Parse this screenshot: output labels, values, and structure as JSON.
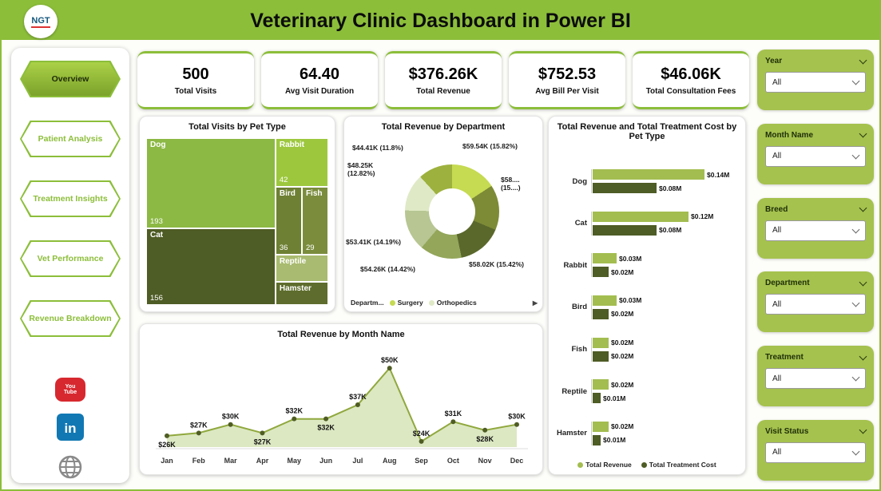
{
  "header": {
    "title": "Veterinary Clinic Dashboard in Power BI",
    "logo_text": "NGT"
  },
  "sidebar": {
    "items": [
      {
        "label": "Overview",
        "active": true
      },
      {
        "label": "Patient Analysis",
        "active": false
      },
      {
        "label": "Treatment Insights",
        "active": false
      },
      {
        "label": "Vet Performance",
        "active": false
      },
      {
        "label": "Revenue Breakdown",
        "active": false
      }
    ],
    "social": [
      {
        "name": "youtube",
        "text": "You Tube"
      },
      {
        "name": "linkedin",
        "text": "in"
      },
      {
        "name": "website",
        "text": ""
      }
    ]
  },
  "kpis": [
    {
      "value": "500",
      "label": "Total Visits"
    },
    {
      "value": "64.40",
      "label": "Avg Visit Duration"
    },
    {
      "value": "$376.26K",
      "label": "Total Revenue"
    },
    {
      "value": "$752.53",
      "label": "Avg Bill Per Visit"
    },
    {
      "value": "$46.06K",
      "label": "Total Consultation Fees"
    }
  ],
  "filters": [
    {
      "label": "Year",
      "value": "All"
    },
    {
      "label": "Month Name",
      "value": "All"
    },
    {
      "label": "Breed",
      "value": "All"
    },
    {
      "label": "Department",
      "value": "All"
    },
    {
      "label": "Treatment",
      "value": "All"
    },
    {
      "label": "Visit Status",
      "value": "All"
    }
  ],
  "chart_data": [
    {
      "type": "treemap",
      "title": "Total Visits by Pet Type",
      "items": [
        {
          "label": "Dog",
          "value": "193",
          "color": "#8cb944"
        },
        {
          "label": "Cat",
          "value": "156",
          "color": "#4e5c25"
        },
        {
          "label": "Rabbit",
          "value": "42",
          "color": "#9dc83e"
        },
        {
          "label": "Bird",
          "value": "36",
          "color": "#6e8034"
        },
        {
          "label": "Fish",
          "value": "29",
          "color": "#7b8d3d"
        },
        {
          "label": "Reptile",
          "value": "",
          "color": "#a9bb70"
        },
        {
          "label": "Hamster",
          "value": "",
          "color": "#5e6d2d"
        }
      ]
    },
    {
      "type": "pie",
      "title": "Total Revenue by Department",
      "slices": [
        {
          "label": "$59.54K (15.82%)",
          "pct": 15.82,
          "color": "#c6da52"
        },
        {
          "label": "$58.... (15....)",
          "pct": 15.52,
          "color": "#7d8b36"
        },
        {
          "label": "$58.02K (15.42%)",
          "pct": 15.42,
          "color": "#5a682c"
        },
        {
          "label": "$54.26K (14.42%)",
          "pct": 14.42,
          "color": "#93a65a"
        },
        {
          "label": "$53.41K (14.19%)",
          "pct": 14.19,
          "color": "#b7c693"
        },
        {
          "label": "$48.25K (12.82%)",
          "pct": 12.82,
          "color": "#dfe9c6"
        },
        {
          "label": "$44.41K (11.8%)",
          "pct": 11.81,
          "color": "#9db13e"
        }
      ],
      "legend_title": "Departm...",
      "legend": [
        {
          "label": "Surgery",
          "color": "#c6da52"
        },
        {
          "label": "Orthopedics",
          "color": "#dfe9c6"
        }
      ]
    },
    {
      "type": "bar",
      "title": "Total Revenue and Total Treatment Cost by Pet Type",
      "categories": [
        "Dog",
        "Cat",
        "Rabbit",
        "Bird",
        "Fish",
        "Reptile",
        "Hamster"
      ],
      "xlim": [
        0,
        0.15
      ],
      "series": [
        {
          "name": "Total Revenue",
          "color": "#a3bd50",
          "values": [
            0.14,
            0.12,
            0.03,
            0.03,
            0.02,
            0.02,
            0.02
          ],
          "labels": [
            "$0.14M",
            "$0.12M",
            "$0.03M",
            "$0.03M",
            "$0.02M",
            "$0.02M",
            "$0.02M"
          ]
        },
        {
          "name": "Total Treatment Cost",
          "color": "#4e5c25",
          "values": [
            0.08,
            0.08,
            0.02,
            0.02,
            0.02,
            0.01,
            0.01
          ],
          "labels": [
            "$0.08M",
            "$0.08M",
            "$0.02M",
            "$0.02M",
            "$0.02M",
            "$0.01M",
            "$0.01M"
          ]
        }
      ]
    },
    {
      "type": "area",
      "title": "Total Revenue by Month Name",
      "categories": [
        "Jan",
        "Feb",
        "Mar",
        "Apr",
        "May",
        "Jun",
        "Jul",
        "Aug",
        "Sep",
        "Oct",
        "Nov",
        "Dec"
      ],
      "values": [
        26,
        27,
        30,
        27,
        32,
        32,
        37,
        50,
        24,
        31,
        28,
        30
      ],
      "labels": [
        "$26K",
        "$27K",
        "$30K",
        "$27K",
        "$32K",
        "$32K",
        "$37K",
        "$50K",
        "$24K",
        "$31K",
        "$28K",
        "$30K"
      ],
      "label_sides": [
        "below",
        "above",
        "above",
        "below",
        "above",
        "below",
        "above",
        "above",
        "above",
        "above",
        "below",
        "above"
      ],
      "ylim": [
        22,
        52
      ],
      "line_color": "#90a83e",
      "area_color": "#d8e5bb",
      "dot_color": "#4f5d24"
    }
  ]
}
